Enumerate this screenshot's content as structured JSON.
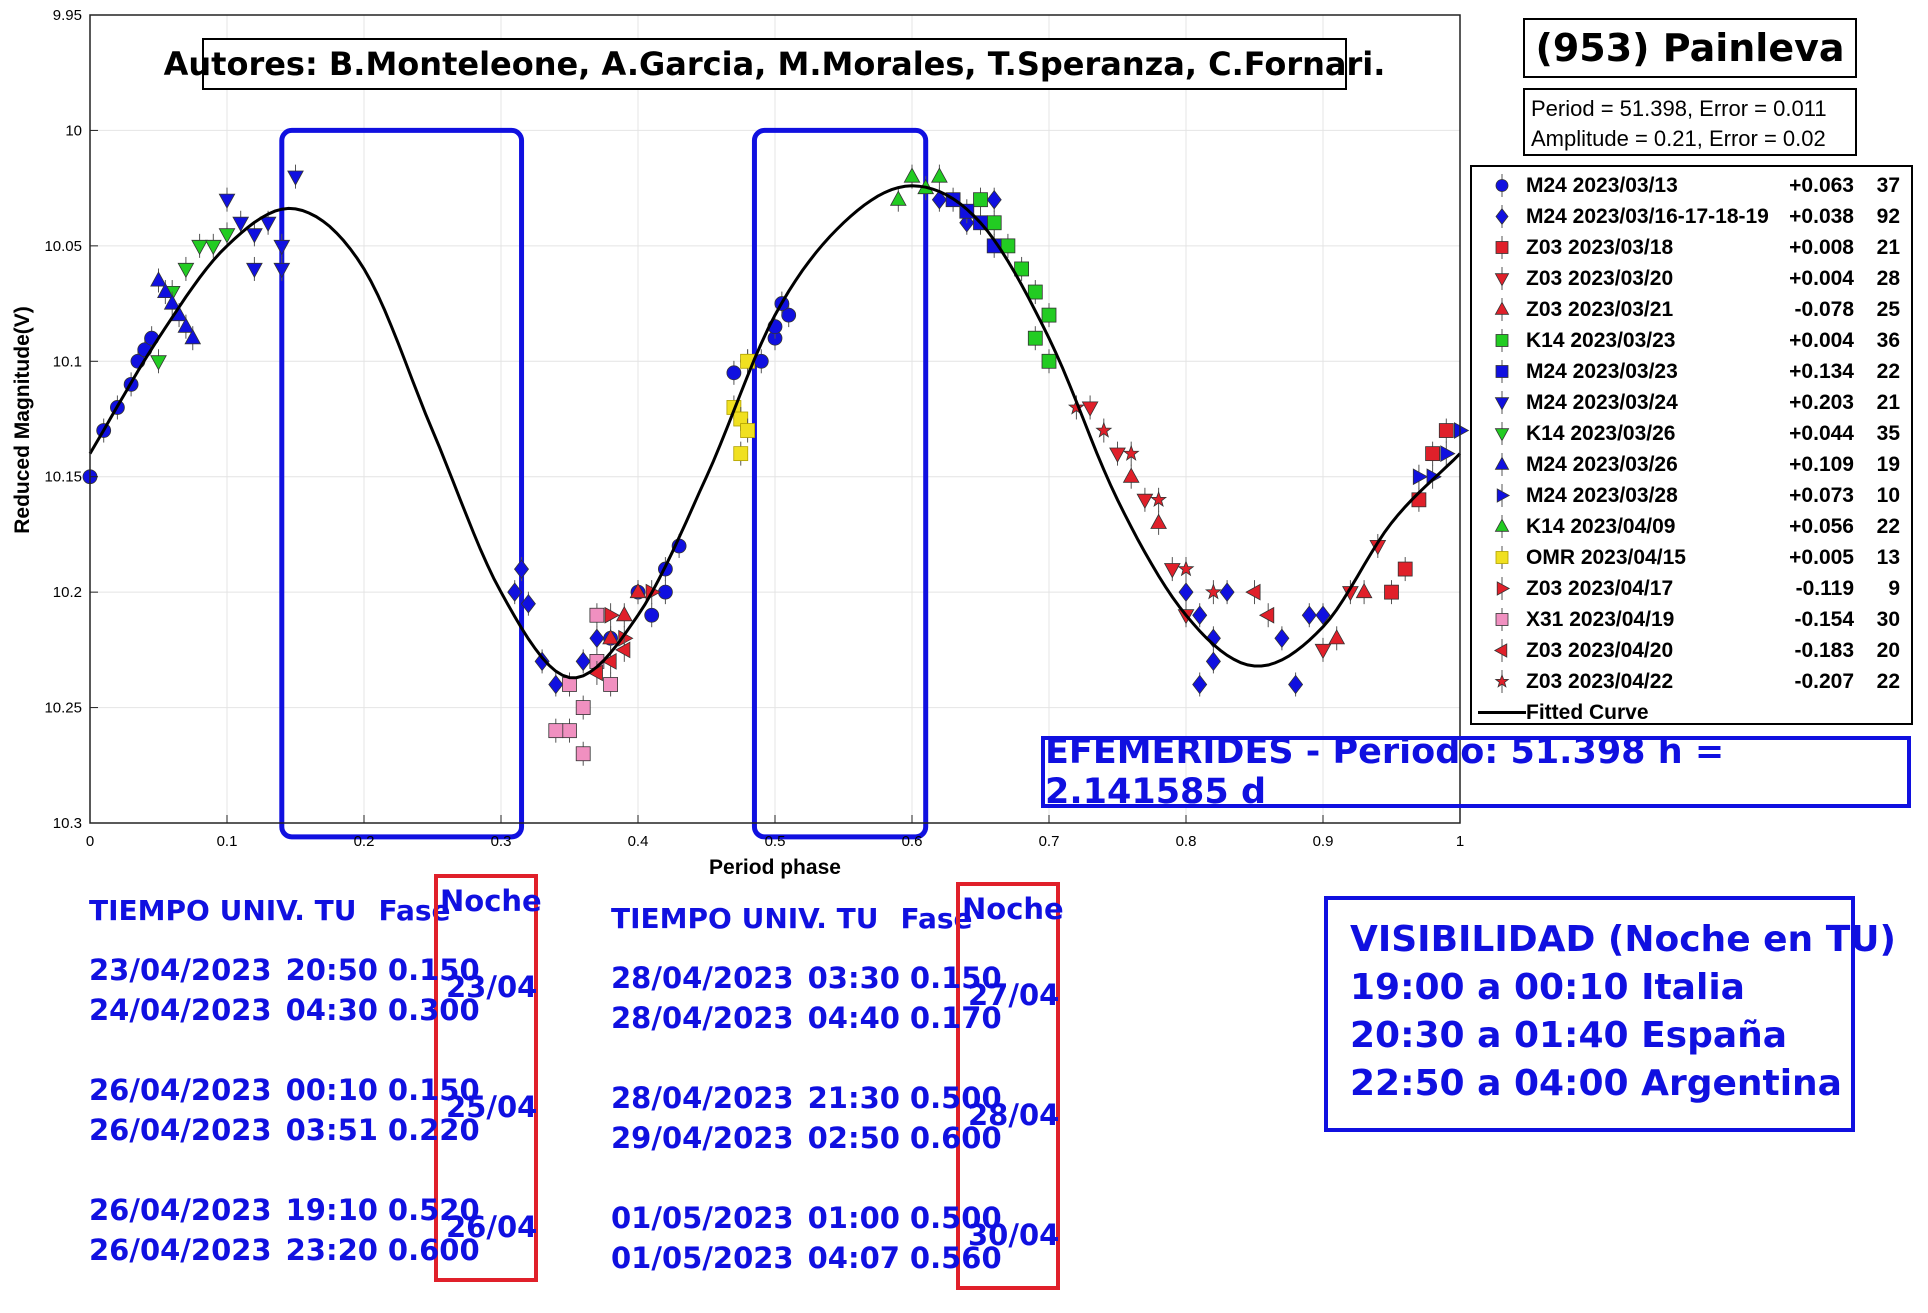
{
  "object_title": "(953) Painleva",
  "authors": "Autores: B.Monteleone, A.Garcia, M.Morales, T.Speranza, C.Fornari.",
  "stats": [
    "Period =  51.398, Error = 0.011",
    "Amplitude = 0.21, Error = 0.02"
  ],
  "efemerides": "EFEMERIDES - Periodo: 51.398 h = 2.141585 d",
  "colors": {
    "blue": "#1010e0",
    "red": "#e0202a",
    "green": "#22cc22",
    "yellow": "#f0e020",
    "pink": "#f090c0",
    "curve": "#000000"
  },
  "chart_data": {
    "type": "scatter",
    "xlabel": "Period phase",
    "ylabel": "Reduced Magnitude(V)",
    "xlim": [
      0,
      1
    ],
    "ylim": [
      10.3,
      9.95
    ],
    "y_reversed": true,
    "xticks": [
      0,
      0.1,
      0.2,
      0.3,
      0.4,
      0.5,
      0.6,
      0.7,
      0.8,
      0.9,
      1
    ],
    "yticks": [
      9.95,
      10,
      10.05,
      10.1,
      10.15,
      10.2,
      10.25,
      10.3
    ],
    "ytick_labels": [
      "9.95",
      "10",
      "10.05",
      "10.1",
      "10.15",
      "10.2",
      "10.25",
      "10.3"
    ],
    "grid": true,
    "legend_position": "right",
    "highlighted_phase_windows": [
      [
        0.14,
        0.315
      ],
      [
        0.485,
        0.61
      ]
    ],
    "fitted_curve": {
      "name": "Fitted Curve",
      "points": [
        [
          0,
          10.14
        ],
        [
          0.05,
          10.09
        ],
        [
          0.1,
          10.05
        ],
        [
          0.15,
          10.034
        ],
        [
          0.2,
          10.06
        ],
        [
          0.25,
          10.13
        ],
        [
          0.3,
          10.2
        ],
        [
          0.35,
          10.237
        ],
        [
          0.4,
          10.21
        ],
        [
          0.45,
          10.15
        ],
        [
          0.5,
          10.08
        ],
        [
          0.55,
          10.04
        ],
        [
          0.6,
          10.024
        ],
        [
          0.65,
          10.04
        ],
        [
          0.7,
          10.09
        ],
        [
          0.75,
          10.16
        ],
        [
          0.8,
          10.21
        ],
        [
          0.85,
          10.232
        ],
        [
          0.9,
          10.215
        ],
        [
          0.95,
          10.17
        ],
        [
          1,
          10.14
        ]
      ]
    },
    "series": [
      {
        "name": "M24 2023/03/13",
        "offset": "+0.063",
        "count": "37",
        "marker": "circle",
        "color": "#1010e0",
        "points": [
          [
            0,
            10.15
          ],
          [
            0.01,
            10.13
          ],
          [
            0.02,
            10.12
          ],
          [
            0.03,
            10.11
          ],
          [
            0.035,
            10.1
          ],
          [
            0.04,
            10.095
          ],
          [
            0.045,
            10.09
          ],
          [
            0.38,
            10.22
          ],
          [
            0.4,
            10.2
          ],
          [
            0.41,
            10.21
          ],
          [
            0.42,
            10.2
          ],
          [
            0.42,
            10.19
          ],
          [
            0.43,
            10.18
          ],
          [
            0.47,
            10.105
          ],
          [
            0.48,
            10.1
          ],
          [
            0.49,
            10.1
          ],
          [
            0.5,
            10.09
          ],
          [
            0.51,
            10.08
          ],
          [
            0.505,
            10.075
          ],
          [
            0.5,
            10.085
          ]
        ]
      },
      {
        "name": "M24 2023/03/16-17-18-19",
        "offset": "+0.038",
        "count": "92",
        "marker": "diamond",
        "color": "#1010e0",
        "points": [
          [
            0.31,
            10.2
          ],
          [
            0.315,
            10.19
          ],
          [
            0.32,
            10.205
          ],
          [
            0.33,
            10.23
          ],
          [
            0.34,
            10.24
          ],
          [
            0.36,
            10.23
          ],
          [
            0.37,
            10.22
          ],
          [
            0.8,
            10.2
          ],
          [
            0.81,
            10.21
          ],
          [
            0.82,
            10.22
          ],
          [
            0.83,
            10.2
          ],
          [
            0.82,
            10.23
          ],
          [
            0.81,
            10.24
          ],
          [
            0.87,
            10.22
          ],
          [
            0.88,
            10.24
          ],
          [
            0.89,
            10.21
          ],
          [
            0.9,
            10.21
          ],
          [
            0.62,
            10.03
          ],
          [
            0.64,
            10.04
          ],
          [
            0.66,
            10.03
          ]
        ]
      },
      {
        "name": "Z03 2023/03/18",
        "offset": "+0.008",
        "count": "21",
        "marker": "square",
        "color": "#e0202a",
        "points": [
          [
            0.95,
            10.2
          ],
          [
            0.96,
            10.19
          ],
          [
            0.98,
            10.14
          ],
          [
            0.99,
            10.13
          ],
          [
            0.97,
            10.16
          ]
        ]
      },
      {
        "name": "Z03 2023/03/20",
        "offset": "+0.004",
        "count": "28",
        "marker": "triangle-down",
        "color": "#e0202a",
        "points": [
          [
            0.73,
            10.12
          ],
          [
            0.75,
            10.14
          ],
          [
            0.77,
            10.16
          ],
          [
            0.79,
            10.19
          ],
          [
            0.8,
            10.21
          ],
          [
            0.9,
            10.225
          ],
          [
            0.92,
            10.2
          ],
          [
            0.94,
            10.18
          ]
        ]
      },
      {
        "name": "Z03 2023/03/21",
        "offset": "-0.078",
        "count": "25",
        "marker": "triangle-up",
        "color": "#e0202a",
        "points": [
          [
            0.38,
            10.22
          ],
          [
            0.39,
            10.21
          ],
          [
            0.4,
            10.2
          ],
          [
            0.76,
            10.15
          ],
          [
            0.78,
            10.17
          ],
          [
            0.91,
            10.22
          ],
          [
            0.93,
            10.2
          ]
        ]
      },
      {
        "name": "K14 2023/03/23",
        "offset": "+0.004",
        "count": "36",
        "marker": "square",
        "color": "#22cc22",
        "points": [
          [
            0.65,
            10.03
          ],
          [
            0.66,
            10.04
          ],
          [
            0.67,
            10.05
          ],
          [
            0.68,
            10.06
          ],
          [
            0.69,
            10.07
          ],
          [
            0.7,
            10.08
          ],
          [
            0.69,
            10.09
          ],
          [
            0.7,
            10.1
          ]
        ]
      },
      {
        "name": "M24 2023/03/23",
        "offset": "+0.134",
        "count": "22",
        "marker": "square",
        "color": "#1010e0",
        "points": [
          [
            0.63,
            10.03
          ],
          [
            0.64,
            10.035
          ],
          [
            0.65,
            10.04
          ],
          [
            0.66,
            10.05
          ]
        ]
      },
      {
        "name": "M24 2023/03/24",
        "offset": "+0.203",
        "count": "21",
        "marker": "triangle-down",
        "color": "#1010e0",
        "points": [
          [
            0.1,
            10.03
          ],
          [
            0.11,
            10.04
          ],
          [
            0.12,
            10.045
          ],
          [
            0.13,
            10.04
          ],
          [
            0.14,
            10.05
          ],
          [
            0.15,
            10.02
          ],
          [
            0.14,
            10.06
          ],
          [
            0.12,
            10.06
          ]
        ]
      },
      {
        "name": "K14 2023/03/26",
        "offset": "+0.044",
        "count": "35",
        "marker": "triangle-down",
        "color": "#22cc22",
        "points": [
          [
            0.08,
            10.05
          ],
          [
            0.09,
            10.05
          ],
          [
            0.1,
            10.045
          ],
          [
            0.07,
            10.06
          ],
          [
            0.06,
            10.07
          ],
          [
            0.05,
            10.1
          ]
        ]
      },
      {
        "name": "M24 2023/03/26",
        "offset": "+0.109",
        "count": "19",
        "marker": "triangle-up",
        "color": "#1010e0",
        "points": [
          [
            0.05,
            10.065
          ],
          [
            0.055,
            10.07
          ],
          [
            0.06,
            10.075
          ],
          [
            0.065,
            10.08
          ],
          [
            0.07,
            10.085
          ],
          [
            0.075,
            10.09
          ]
        ]
      },
      {
        "name": "M24 2023/03/28",
        "offset": "+0.073",
        "count": "10",
        "marker": "triangle-right",
        "color": "#1010e0",
        "points": [
          [
            0.97,
            10.15
          ],
          [
            0.98,
            10.15
          ],
          [
            0.99,
            10.14
          ],
          [
            1,
            10.13
          ]
        ]
      },
      {
        "name": "K14 2023/04/09",
        "offset": "+0.056",
        "count": "22",
        "marker": "triangle-up",
        "color": "#22cc22",
        "points": [
          [
            0.6,
            10.02
          ],
          [
            0.61,
            10.025
          ],
          [
            0.62,
            10.02
          ],
          [
            0.59,
            10.03
          ]
        ]
      },
      {
        "name": "OMR 2023/04/15",
        "offset": "+0.005",
        "count": "13",
        "marker": "square",
        "color": "#f0e020",
        "points": [
          [
            0.47,
            10.12
          ],
          [
            0.475,
            10.125
          ],
          [
            0.48,
            10.13
          ],
          [
            0.475,
            10.14
          ],
          [
            0.48,
            10.1
          ]
        ]
      },
      {
        "name": "Z03 2023/04/17",
        "offset": "-0.119",
        "count": "9",
        "marker": "triangle-right",
        "color": "#e0202a",
        "points": [
          [
            0.38,
            10.21
          ],
          [
            0.39,
            10.22
          ],
          [
            0.41,
            10.2
          ]
        ]
      },
      {
        "name": "X31 2023/04/19",
        "offset": "-0.154",
        "count": "30",
        "marker": "square",
        "color": "#f090c0",
        "points": [
          [
            0.35,
            10.24
          ],
          [
            0.36,
            10.25
          ],
          [
            0.37,
            10.23
          ],
          [
            0.38,
            10.24
          ],
          [
            0.35,
            10.26
          ],
          [
            0.34,
            10.26
          ],
          [
            0.36,
            10.27
          ],
          [
            0.37,
            10.21
          ]
        ]
      },
      {
        "name": "Z03 2023/04/20",
        "offset": "-0.183",
        "count": "20",
        "marker": "triangle-left",
        "color": "#e0202a",
        "points": [
          [
            0.37,
            10.235
          ],
          [
            0.38,
            10.23
          ],
          [
            0.39,
            10.225
          ],
          [
            0.85,
            10.2
          ],
          [
            0.86,
            10.21
          ]
        ]
      },
      {
        "name": "Z03 2023/04/22",
        "offset": "-0.207",
        "count": "22",
        "marker": "star",
        "color": "#e0202a",
        "points": [
          [
            0.72,
            10.12
          ],
          [
            0.74,
            10.13
          ],
          [
            0.76,
            10.14
          ],
          [
            0.78,
            10.16
          ],
          [
            0.8,
            10.19
          ],
          [
            0.82,
            10.2
          ]
        ]
      }
    ]
  },
  "ephemeris": {
    "left": {
      "header": [
        "TIEMPO UNIV. TU",
        "Fase"
      ],
      "night_header": "Noche",
      "groups": [
        {
          "rows": [
            [
              "23/04/2023",
              "20:50",
              "0.150"
            ],
            [
              "24/04/2023",
              "04:30",
              "0.300"
            ]
          ],
          "night": "23/04"
        },
        {
          "rows": [
            [
              "26/04/2023",
              "00:10",
              "0.150"
            ],
            [
              "26/04/2023",
              "03:51",
              "0.220"
            ]
          ],
          "night": "25/04"
        },
        {
          "rows": [
            [
              "26/04/2023",
              "19:10",
              "0.520"
            ],
            [
              "26/04/2023",
              "23:20",
              "0.600"
            ]
          ],
          "night": "26/04"
        }
      ]
    },
    "right": {
      "header": [
        "TIEMPO UNIV. TU",
        "Fase"
      ],
      "night_header": "Noche",
      "groups": [
        {
          "rows": [
            [
              "28/04/2023",
              "03:30",
              "0.150"
            ],
            [
              "28/04/2023",
              "04:40",
              "0.170"
            ]
          ],
          "night": "27/04"
        },
        {
          "rows": [
            [
              "28/04/2023",
              "21:30",
              "0.500"
            ],
            [
              "29/04/2023",
              "02:50",
              "0.600"
            ]
          ],
          "night": "28/04"
        },
        {
          "rows": [
            [
              "01/05/2023",
              "01:00",
              "0.500"
            ],
            [
              "01/05/2023",
              "04:07",
              "0.560"
            ]
          ],
          "night": "30/04"
        }
      ]
    }
  },
  "visibility": {
    "title": "VISIBILIDAD (Noche en TU)",
    "lines": [
      "19:00 a 00:10 Italia",
      "20:30 a 01:40 España",
      "22:50 a 04:00 Argentina"
    ]
  }
}
